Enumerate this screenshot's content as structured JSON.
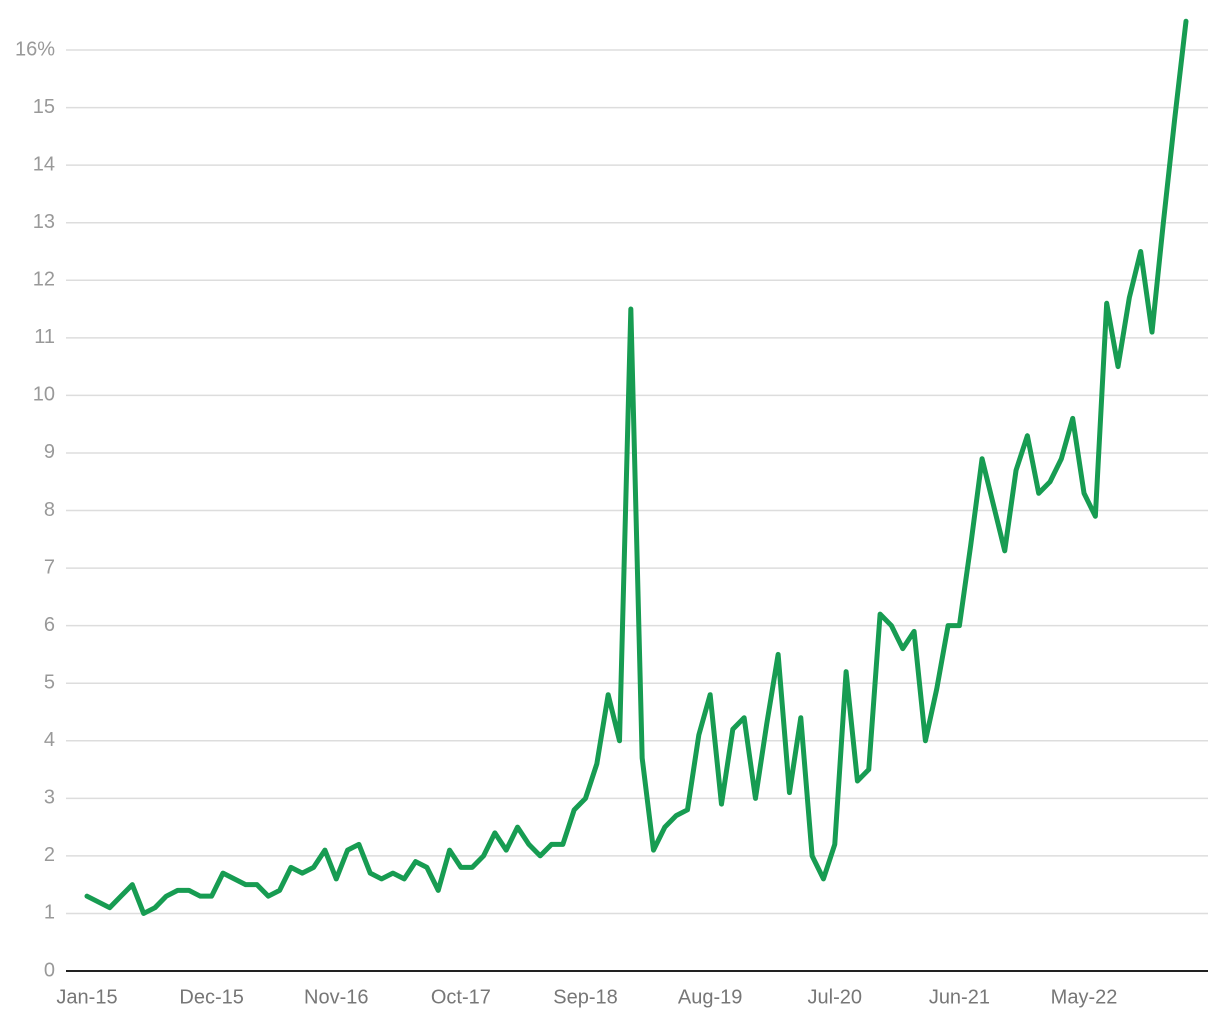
{
  "chart_data": {
    "type": "line",
    "categories": [
      "Jan-15",
      null,
      null,
      null,
      null,
      null,
      null,
      null,
      null,
      null,
      null,
      "Dec-15",
      null,
      null,
      null,
      null,
      null,
      null,
      null,
      null,
      null,
      null,
      "Nov-16",
      null,
      null,
      null,
      null,
      null,
      null,
      null,
      null,
      null,
      null,
      "Oct-17",
      null,
      null,
      null,
      null,
      null,
      null,
      null,
      null,
      null,
      null,
      "Sep-18",
      null,
      null,
      null,
      null,
      null,
      null,
      null,
      null,
      null,
      null,
      "Aug-19",
      null,
      null,
      null,
      null,
      null,
      null,
      null,
      null,
      null,
      null,
      "Jul-20",
      null,
      null,
      null,
      null,
      null,
      null,
      null,
      null,
      null,
      null,
      "Jun-21",
      null,
      null,
      null,
      null,
      null,
      null,
      null,
      null,
      null,
      null,
      "May-22",
      null,
      null,
      null,
      null,
      null,
      null,
      null,
      null,
      null
    ],
    "series": [
      {
        "color": "#179c52",
        "values": [
          1.3,
          1.2,
          1.1,
          1.3,
          1.5,
          1.0,
          1.1,
          1.3,
          1.4,
          1.4,
          1.3,
          1.3,
          1.7,
          1.6,
          1.5,
          1.5,
          1.3,
          1.4,
          1.8,
          1.7,
          1.8,
          2.1,
          1.6,
          2.1,
          2.2,
          1.7,
          1.6,
          1.7,
          1.6,
          1.9,
          1.8,
          1.4,
          2.1,
          1.8,
          1.8,
          2.0,
          2.4,
          2.1,
          2.5,
          2.2,
          2.0,
          2.2,
          2.2,
          2.8,
          3.0,
          3.6,
          4.8,
          4.0,
          11.5,
          3.7,
          2.1,
          2.5,
          2.7,
          2.8,
          4.1,
          4.8,
          2.9,
          4.2,
          4.4,
          3.0,
          4.3,
          5.5,
          3.1,
          4.4,
          2.0,
          1.6,
          2.2,
          5.2,
          3.3,
          3.5,
          6.2,
          6.0,
          5.6,
          5.9,
          4.0,
          4.9,
          6.0,
          6.0,
          7.4,
          8.9,
          8.1,
          7.3,
          8.7,
          9.3,
          8.3,
          8.5,
          8.9,
          9.6,
          8.3,
          7.9,
          11.6,
          10.5,
          11.7,
          12.5,
          11.1,
          13.0,
          14.8,
          16.5
        ]
      }
    ],
    "ylim": [
      0,
      16.5
    ],
    "yticks": [
      0,
      1,
      2,
      3,
      4,
      5,
      6,
      7,
      8,
      9,
      10,
      11,
      12,
      13,
      14,
      15,
      {
        "value": 16,
        "label": "16%"
      }
    ],
    "grid": true
  }
}
